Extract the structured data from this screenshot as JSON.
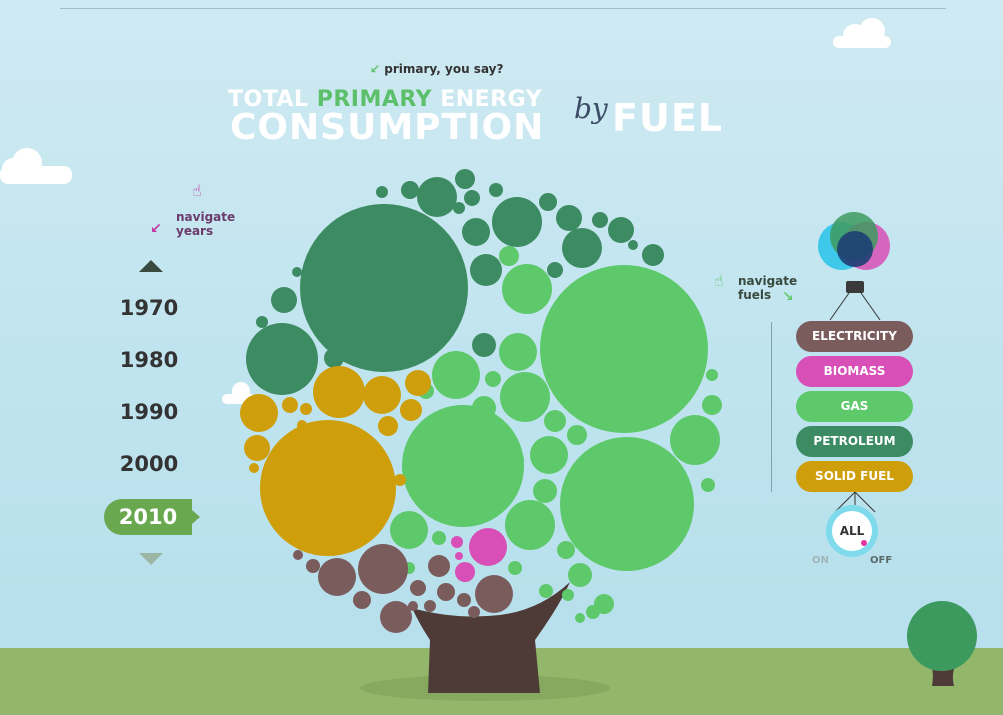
{
  "header": {
    "annotation": "primary, you say?",
    "title_line1_pre": "TOTAL ",
    "title_line1_accent": "PRIMARY",
    "title_line1_post": " ENERGY",
    "title_line2": "CONSUMPTION",
    "title_by": "by",
    "title_fuel": "FUEL"
  },
  "years_nav": {
    "hint": "navigate years",
    "years": [
      "1970",
      "1980",
      "1990",
      "2000",
      "2010"
    ],
    "selected": "2010",
    "up_icon": "chevron-up-icon",
    "down_icon": "chevron-down-icon"
  },
  "fuels_nav": {
    "hint": "navigate fuels",
    "fuels": [
      {
        "label": "ELECTRICITY",
        "color": "#7a5c5c"
      },
      {
        "label": "BIOMASS",
        "color": "#d74fb7"
      },
      {
        "label": "GAS",
        "color": "#5ec96b"
      },
      {
        "label": "PETROLEUM",
        "color": "#3d8b62"
      },
      {
        "label": "SOLID FUEL",
        "color": "#cf9e0b"
      }
    ],
    "all_label": "ALL",
    "on_label": "ON",
    "off_label": "OFF"
  },
  "colors": {
    "electricity": "#7a5c5c",
    "biomass": "#d74fb7",
    "gas": "#5ec96b",
    "petroleum": "#3d8b62",
    "solid_fuel": "#cf9e0b",
    "trunk": "#4e3a36",
    "ground": "#93b76a",
    "sky": "#c4e6ef"
  }
}
